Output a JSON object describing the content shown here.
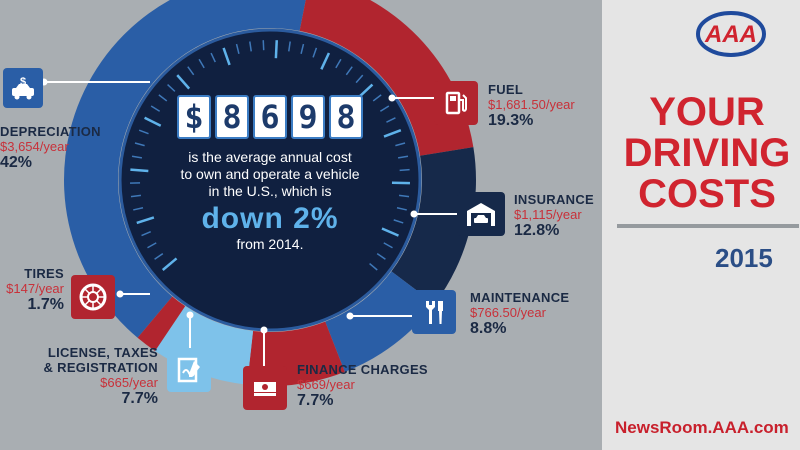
{
  "brand": {
    "logo_text": "AAA"
  },
  "title": {
    "line1": "YOUR",
    "line2": "DRIVING",
    "line3": "COSTS",
    "year": "2015"
  },
  "website": "NewsRoom.AAA.com",
  "center": {
    "digits": [
      "$",
      "8",
      "6",
      "9",
      "8"
    ],
    "line1": "is the average annual cost",
    "line2": "to own and operate a vehicle",
    "line3": "in the U.S., which is",
    "highlight": "down 2%",
    "line4": "from 2014."
  },
  "colors": {
    "depreciation": "#2a5ea6",
    "fuel": "#b1252f",
    "insurance": "#16294a",
    "maintenance": "#2a5ea6",
    "finance": "#b1252f",
    "license": "#7ec2ea",
    "tires": "#b1252f"
  },
  "chart_data": {
    "type": "pie",
    "categories": [
      "Depreciation",
      "Fuel",
      "Insurance",
      "Maintenance",
      "Finance Charges",
      "License, Taxes & Registration",
      "Tires"
    ],
    "values": [
      3654,
      1681.5,
      1115,
      766.5,
      669,
      665,
      147
    ],
    "percent": [
      42,
      19.3,
      12.8,
      8.8,
      7.7,
      7.7,
      1.7
    ],
    "labels": {
      "depreciation": {
        "name": "DEPRECIATION",
        "cost": "$3,654/year",
        "pct": "42%",
        "icon": "car-dollar-icon"
      },
      "fuel": {
        "name": "FUEL",
        "cost": "$1,681.50/year",
        "pct": "19.3%",
        "icon": "gas-pump-icon"
      },
      "insurance": {
        "name": "INSURANCE",
        "cost": "$1,115/year",
        "pct": "12.8%",
        "icon": "garage-icon"
      },
      "maintenance": {
        "name": "MAINTENANCE",
        "cost": "$766.50/year",
        "pct": "8.8%",
        "icon": "wrench-screwdriver-icon"
      },
      "finance": {
        "name": "FINANCE CHARGES",
        "cost": "$669/year",
        "pct": "7.7%",
        "icon": "money-stack-icon"
      },
      "license": {
        "name1": "LICENSE, TAXES",
        "name2": "& REGISTRATION",
        "cost": "$665/year",
        "pct": "7.7%",
        "icon": "document-pen-icon"
      },
      "tires": {
        "name": "TIRES",
        "cost": "$147/year",
        "pct": "1.7%",
        "icon": "tire-icon"
      }
    }
  }
}
